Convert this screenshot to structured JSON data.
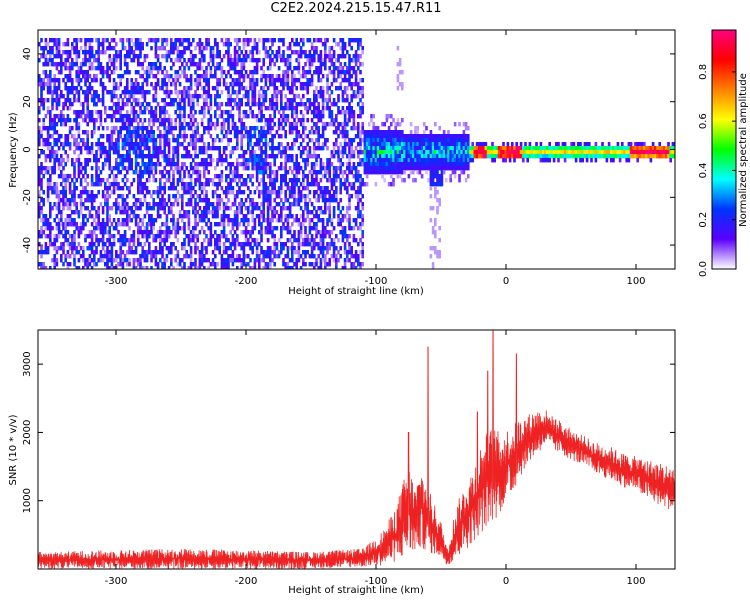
{
  "chart_data": [
    {
      "type": "heatmap",
      "title": "C2E2.2024.215.15.47.R11",
      "xlabel": "Height of straight line (km)",
      "ylabel": "Frequency (Hz)",
      "xlim": [
        -360,
        130
      ],
      "ylim": [
        -50,
        50
      ],
      "xticks": [
        -300,
        -200,
        -100,
        0,
        100
      ],
      "xtick_labels": [
        "-300",
        "-200",
        "-100",
        "0",
        "100"
      ],
      "yticks": [
        -40,
        -20,
        0,
        20,
        40
      ],
      "ytick_labels": [
        "-40",
        "-20",
        "0",
        "20",
        "40"
      ],
      "colorbar": {
        "label": "Normalized spectral amplitude",
        "range": [
          0,
          0.97
        ],
        "ticks": [
          0.0,
          0.2,
          0.4,
          0.6,
          0.8
        ],
        "tick_labels": [
          "0.0",
          "0.2",
          "0.4",
          "0.6",
          "0.8"
        ],
        "colormap": [
          "#ffffff",
          "#5a00ff",
          "#0033ff",
          "#00ffff",
          "#00ff00",
          "#ffff00",
          "#ff8000",
          "#ff0000",
          "#ff0080"
        ]
      },
      "regions": [
        {
          "x_range": [
            -360,
            -110
          ],
          "y_range": [
            -50,
            48
          ],
          "amplitude": [
            0.05,
            0.25
          ],
          "description": "broadband noise"
        },
        {
          "x_range": [
            -115,
            -30
          ],
          "y_center": 0,
          "y_halfwidth": 7,
          "amplitude": [
            0.2,
            0.5
          ]
        },
        {
          "x_range": [
            -30,
            130
          ],
          "y_center": 0,
          "y_halfwidth": 2.5,
          "amplitude": [
            0.3,
            0.97
          ]
        }
      ],
      "grid": false
    },
    {
      "type": "line",
      "title": "",
      "xlabel": "Height of straight line (km)",
      "ylabel": "SNR (10 * v/v)",
      "xlim": [
        -360,
        130
      ],
      "ylim": [
        0,
        3500
      ],
      "xticks": [
        -300,
        -200,
        -100,
        0,
        100
      ],
      "xtick_labels": [
        "-300",
        "-200",
        "-100",
        "0",
        "100"
      ],
      "yticks": [
        1000,
        2000,
        3000
      ],
      "ytick_labels": [
        "1000",
        "2000",
        "3000"
      ],
      "series": [
        {
          "color": "#ee2222",
          "envelope_x": [
            -360,
            -300,
            -250,
            -200,
            -150,
            -110,
            -95,
            -85,
            -75,
            -70,
            -65,
            -60,
            -55,
            -50,
            -45,
            -40,
            -35,
            -30,
            -25,
            -20,
            -15,
            -10,
            -5,
            0,
            5,
            10,
            15,
            20,
            25,
            30,
            35,
            40,
            50,
            60,
            70,
            80,
            90,
            100,
            110,
            120,
            130
          ],
          "envelope_low": [
            0,
            0,
            0,
            0,
            0,
            30,
            50,
            100,
            200,
            250,
            300,
            250,
            200,
            150,
            50,
            100,
            200,
            300,
            400,
            500,
            600,
            700,
            800,
            1000,
            1100,
            1300,
            1500,
            1600,
            1700,
            1800,
            1750,
            1700,
            1600,
            1500,
            1400,
            1300,
            1200,
            1150,
            1000,
            900,
            850
          ],
          "envelope_high": [
            250,
            280,
            300,
            280,
            250,
            300,
            550,
            900,
            1550,
            1200,
            1500,
            1200,
            950,
            700,
            300,
            800,
            1100,
            1300,
            1500,
            1800,
            2000,
            2100,
            2000,
            2050,
            2100,
            2200,
            2250,
            2300,
            2350,
            2350,
            2250,
            2200,
            2050,
            1950,
            1850,
            1800,
            1700,
            1650,
            1600,
            1550,
            1500
          ],
          "spikes": [
            [
              -60,
              3250
            ],
            [
              -10,
              3500
            ],
            [
              8,
              3150
            ],
            [
              -14,
              2900
            ],
            [
              -75,
              2000
            ],
            [
              -22,
              2300
            ]
          ]
        }
      ],
      "grid": false
    }
  ]
}
